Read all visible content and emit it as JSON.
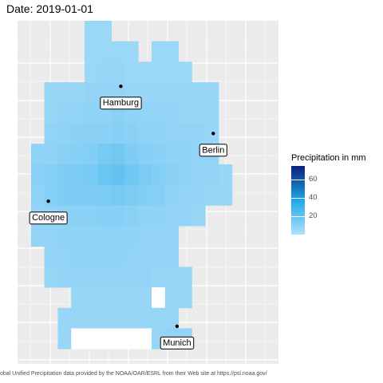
{
  "title": "Date: 2019-01-01",
  "caption": "obal Unified Precipitation data provided by the NOAA/OAR/ESRL from their Web site at https://psl.noaa.gov/",
  "legend": {
    "title": "Precipitation in mm",
    "ticks": [
      {
        "value": 60,
        "label": "60"
      },
      {
        "value": 40,
        "label": "40"
      },
      {
        "value": 20,
        "label": "20"
      }
    ],
    "range": [
      0,
      75
    ],
    "colors": {
      "low": "#b3e0fa",
      "mid": "#1ea8e8",
      "high": "#0a1e7a"
    }
  },
  "colors": {
    "panel_background": "#ebebeb",
    "grid_line": "#ffffff",
    "missing_cell": "#ffffff",
    "city_point": "#000000"
  },
  "chart_data": {
    "type": "heatmap",
    "title": "Date: 2019-01-01",
    "xlabel": "",
    "ylabel": "",
    "grid": true,
    "legend_position": "right",
    "value_scale": {
      "name": "Precipitation in mm",
      "min": 0,
      "max": 75,
      "breaks": [
        20,
        40,
        60
      ]
    },
    "rows": [
      [
        null,
        null,
        null,
        null,
        null,
        6,
        6,
        null,
        null,
        null,
        null,
        null,
        null,
        null,
        null,
        null,
        null
      ],
      [
        null,
        null,
        null,
        null,
        null,
        6,
        6,
        6,
        6,
        null,
        6,
        6,
        null,
        null,
        null,
        null,
        null
      ],
      [
        null,
        null,
        null,
        null,
        null,
        6,
        7,
        7,
        6,
        6,
        6,
        6,
        6,
        null,
        null,
        null,
        null
      ],
      [
        null,
        null,
        7,
        7,
        7,
        8,
        8,
        8,
        7,
        7,
        7,
        7,
        7,
        7,
        7,
        null,
        null
      ],
      [
        null,
        null,
        7,
        8,
        8,
        9,
        9,
        10,
        9,
        8,
        8,
        8,
        7,
        7,
        7,
        null,
        null
      ],
      [
        null,
        null,
        8,
        9,
        10,
        10,
        10,
        11,
        10,
        9,
        9,
        8,
        8,
        8,
        7,
        null,
        null
      ],
      [
        null,
        9,
        9,
        10,
        11,
        12,
        15,
        16,
        13,
        11,
        10,
        9,
        9,
        8,
        8,
        null,
        null
      ],
      [
        null,
        10,
        11,
        13,
        14,
        15,
        18,
        20,
        17,
        14,
        12,
        10,
        9,
        8,
        8,
        7,
        null
      ],
      [
        null,
        9,
        11,
        13,
        13,
        13,
        14,
        15,
        14,
        12,
        11,
        9,
        8,
        8,
        7,
        7,
        null
      ],
      [
        null,
        8,
        9,
        10,
        10,
        10,
        11,
        11,
        10,
        9,
        9,
        8,
        8,
        7,
        null,
        null,
        null
      ],
      [
        null,
        8,
        8,
        9,
        9,
        9,
        9,
        9,
        9,
        8,
        8,
        8,
        null,
        null,
        null,
        null,
        null
      ],
      [
        null,
        null,
        8,
        8,
        9,
        9,
        9,
        9,
        8,
        8,
        8,
        8,
        null,
        null,
        null,
        null,
        null
      ],
      [
        null,
        null,
        7,
        8,
        8,
        8,
        8,
        8,
        8,
        8,
        7,
        7,
        7,
        null,
        null,
        null,
        null
      ],
      [
        null,
        null,
        null,
        null,
        7,
        7,
        7,
        7,
        7,
        7,
        0,
        7,
        7,
        null,
        null,
        null,
        null
      ],
      [
        null,
        null,
        null,
        7,
        7,
        7,
        7,
        7,
        7,
        7,
        7,
        7,
        null,
        null,
        null,
        null,
        null
      ],
      [
        null,
        null,
        null,
        7,
        0,
        0,
        0,
        0,
        0,
        0,
        7,
        8,
        8,
        null,
        null,
        null,
        null
      ]
    ],
    "cities": [
      {
        "name": "Hamburg",
        "col": 7.7,
        "row": 3.2
      },
      {
        "name": "Berlin",
        "col": 14.6,
        "row": 5.5
      },
      {
        "name": "Cologne",
        "col": 2.3,
        "row": 8.8
      },
      {
        "name": "Munich",
        "col": 11.9,
        "row": 14.9
      }
    ]
  }
}
